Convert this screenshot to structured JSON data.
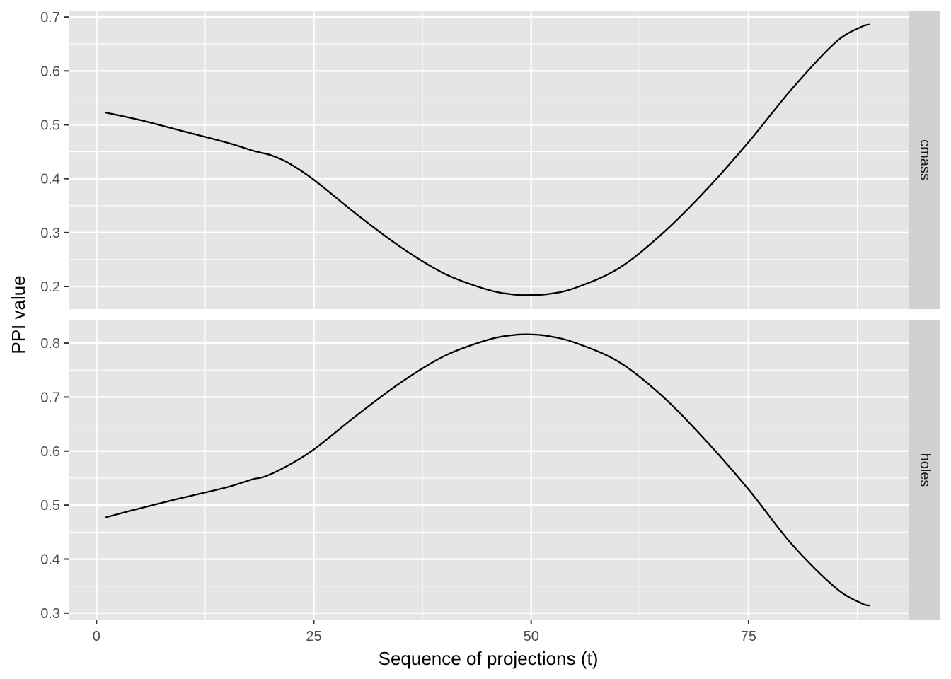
{
  "chart_data": {
    "type": "line",
    "facet": "rows",
    "xlabel": "Sequence of projections (t)",
    "ylabel": "PPI value",
    "x_ticks": [
      0,
      25,
      50,
      75
    ],
    "xlim": [
      -3.2,
      93.4
    ],
    "grid": true,
    "colors": {
      "panel_bg": "#e5e5e5",
      "grid": "#ffffff",
      "strip_bg": "#d1d1d1",
      "line": "#000000"
    },
    "panels": [
      {
        "strip": "cmass",
        "ylim": [
          0.158,
          0.712
        ],
        "y_ticks": [
          0.2,
          0.3,
          0.4,
          0.5,
          0.6,
          0.7
        ],
        "y_tick_labels": [
          "0.2",
          "0.3",
          "0.4",
          "0.5",
          "0.6",
          "0.7"
        ],
        "x": [
          1,
          5,
          10,
          15,
          18,
          19,
          20,
          22,
          25,
          30,
          35,
          40,
          45,
          48,
          50,
          52,
          55,
          60,
          65,
          70,
          75,
          80,
          85,
          88,
          89
        ],
        "y": [
          0.523,
          0.509,
          0.488,
          0.467,
          0.452,
          0.448,
          0.444,
          0.43,
          0.398,
          0.333,
          0.273,
          0.224,
          0.194,
          0.185,
          0.184,
          0.186,
          0.197,
          0.233,
          0.297,
          0.377,
          0.468,
          0.567,
          0.653,
          0.682,
          0.686
        ]
      },
      {
        "strip": "holes",
        "ylim": [
          0.288,
          0.842
        ],
        "y_ticks": [
          0.3,
          0.4,
          0.5,
          0.6,
          0.7,
          0.8
        ],
        "y_tick_labels": [
          "0.3",
          "0.4",
          "0.5",
          "0.6",
          "0.7",
          "0.8"
        ],
        "x": [
          1,
          5,
          10,
          15,
          18,
          19,
          20,
          22,
          25,
          30,
          35,
          40,
          45,
          48,
          50,
          52,
          55,
          60,
          65,
          70,
          75,
          80,
          85,
          88,
          89
        ],
        "y": [
          0.477,
          0.494,
          0.514,
          0.533,
          0.548,
          0.551,
          0.557,
          0.573,
          0.603,
          0.667,
          0.727,
          0.776,
          0.806,
          0.815,
          0.816,
          0.813,
          0.801,
          0.766,
          0.703,
          0.621,
          0.529,
          0.427,
          0.347,
          0.318,
          0.314
        ]
      }
    ]
  }
}
